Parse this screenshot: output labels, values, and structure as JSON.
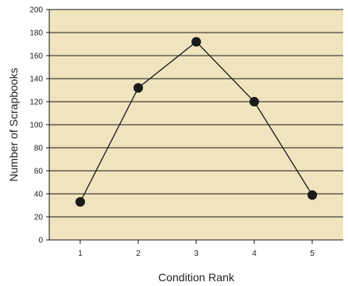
{
  "chart_data": {
    "type": "line",
    "title": "",
    "xlabel": "Condition Rank",
    "ylabel": "Number of Scrapbooks",
    "x": [
      1,
      2,
      3,
      4,
      5
    ],
    "categories": [
      "1",
      "2",
      "3",
      "4",
      "5"
    ],
    "series": [
      {
        "values": [
          33,
          132,
          172,
          120,
          39
        ]
      }
    ],
    "ylim": [
      0,
      200
    ],
    "yticks": [
      0,
      20,
      40,
      60,
      80,
      100,
      120,
      140,
      160,
      180,
      200
    ],
    "yticks_labels": [
      "0",
      "20",
      "40",
      "60",
      "80",
      "100",
      "120",
      "140",
      "160",
      "180",
      "200"
    ],
    "grid": "horizontal",
    "legend": "none",
    "colors": {
      "plot_background": "#efe4bd",
      "gridline": "#1a1a1a",
      "line": "#1a1a1a",
      "marker": "#1a1a1a"
    }
  }
}
